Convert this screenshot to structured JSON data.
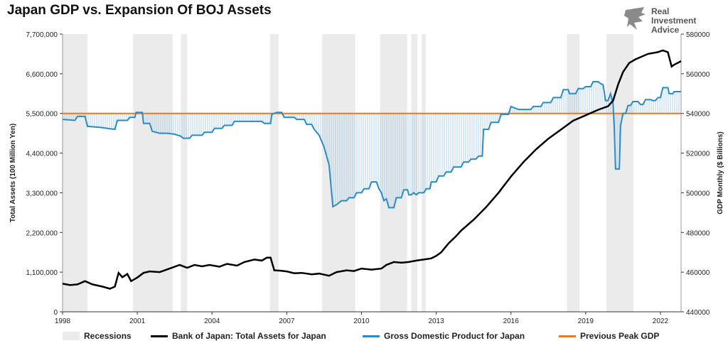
{
  "chart_data": {
    "type": "line",
    "title": "Japan GDP vs. Expansion Of BOJ Assets",
    "brand": {
      "line1": "Real",
      "line2": "Investment",
      "line3": "Advice"
    },
    "x_range": [
      1998.0,
      2022.83
    ],
    "x_ticks": [
      "1998",
      "2001",
      "2004",
      "2007",
      "2010",
      "2013",
      "2016",
      "2019",
      "2022"
    ],
    "left_axis": {
      "label": "Total Assets (100 Million Yen)",
      "range": [
        0,
        7700000
      ],
      "ticks": [
        "0",
        "1,100,000",
        "2,200,000",
        "3,300,000",
        "4,400,000",
        "5,500,000",
        "6,600,000",
        "7,700,000"
      ]
    },
    "right_axis": {
      "label": "GDP Monthly ($ Billions)",
      "range": [
        440000,
        580000
      ],
      "ticks": [
        "440000",
        "460000",
        "480000",
        "500000",
        "520000",
        "540000",
        "560000",
        "580000"
      ]
    },
    "colors": {
      "boj": "#000000",
      "gdp": "#2b8cc4",
      "peak": "#e07b28",
      "recession": "#ebebeb",
      "fill": "#9ec8e2"
    },
    "recessions": [
      [
        1998.0,
        1999.0
      ],
      [
        2000.83,
        2002.42
      ],
      [
        2002.75,
        2003.0
      ],
      [
        2006.33,
        2006.67
      ],
      [
        2008.42,
        2009.75
      ],
      [
        2010.75,
        2011.83
      ],
      [
        2012.0,
        2012.25
      ],
      [
        2012.42,
        2012.58
      ],
      [
        2018.25,
        2018.75
      ],
      [
        2019.83,
        2020.92
      ]
    ],
    "series": [
      {
        "name": "Bank of Japan: Total Assets for Japan",
        "axis": "left",
        "points": [
          [
            1998.0,
            780000
          ],
          [
            1998.3,
            740000
          ],
          [
            1998.6,
            760000
          ],
          [
            1998.9,
            850000
          ],
          [
            1999.2,
            760000
          ],
          [
            1999.6,
            700000
          ],
          [
            1999.9,
            640000
          ],
          [
            2000.1,
            700000
          ],
          [
            2000.25,
            1080000
          ],
          [
            2000.4,
            960000
          ],
          [
            2000.6,
            1050000
          ],
          [
            2000.75,
            850000
          ],
          [
            2001.0,
            950000
          ],
          [
            2001.25,
            1080000
          ],
          [
            2001.5,
            1120000
          ],
          [
            2001.9,
            1100000
          ],
          [
            2002.3,
            1200000
          ],
          [
            2002.7,
            1300000
          ],
          [
            2003.0,
            1220000
          ],
          [
            2003.3,
            1300000
          ],
          [
            2003.6,
            1260000
          ],
          [
            2003.9,
            1300000
          ],
          [
            2004.3,
            1250000
          ],
          [
            2004.6,
            1330000
          ],
          [
            2005.0,
            1280000
          ],
          [
            2005.3,
            1380000
          ],
          [
            2005.7,
            1450000
          ],
          [
            2006.0,
            1420000
          ],
          [
            2006.2,
            1500000
          ],
          [
            2006.35,
            1500000
          ],
          [
            2006.5,
            1150000
          ],
          [
            2006.75,
            1140000
          ],
          [
            2007.0,
            1120000
          ],
          [
            2007.3,
            1070000
          ],
          [
            2007.6,
            1080000
          ],
          [
            2008.0,
            1040000
          ],
          [
            2008.3,
            1060000
          ],
          [
            2008.7,
            1000000
          ],
          [
            2009.0,
            1100000
          ],
          [
            2009.4,
            1150000
          ],
          [
            2009.7,
            1130000
          ],
          [
            2010.0,
            1200000
          ],
          [
            2010.4,
            1170000
          ],
          [
            2010.8,
            1200000
          ],
          [
            2011.0,
            1300000
          ],
          [
            2011.3,
            1380000
          ],
          [
            2011.6,
            1360000
          ],
          [
            2011.9,
            1380000
          ],
          [
            2012.2,
            1420000
          ],
          [
            2012.5,
            1450000
          ],
          [
            2012.8,
            1480000
          ],
          [
            2013.0,
            1550000
          ],
          [
            2013.2,
            1650000
          ],
          [
            2013.5,
            1900000
          ],
          [
            2013.8,
            2100000
          ],
          [
            2014.0,
            2250000
          ],
          [
            2014.5,
            2550000
          ],
          [
            2015.0,
            2900000
          ],
          [
            2015.5,
            3300000
          ],
          [
            2016.0,
            3750000
          ],
          [
            2016.5,
            4150000
          ],
          [
            2017.0,
            4500000
          ],
          [
            2017.5,
            4800000
          ],
          [
            2018.0,
            5050000
          ],
          [
            2018.5,
            5300000
          ],
          [
            2019.0,
            5450000
          ],
          [
            2019.5,
            5600000
          ],
          [
            2019.9,
            5700000
          ],
          [
            2020.1,
            5850000
          ],
          [
            2020.3,
            6300000
          ],
          [
            2020.5,
            6650000
          ],
          [
            2020.75,
            6900000
          ],
          [
            2021.0,
            7000000
          ],
          [
            2021.5,
            7150000
          ],
          [
            2021.9,
            7200000
          ],
          [
            2022.1,
            7250000
          ],
          [
            2022.3,
            7200000
          ],
          [
            2022.45,
            6800000
          ],
          [
            2022.55,
            6850000
          ],
          [
            2022.83,
            6950000
          ]
        ]
      },
      {
        "name": "Gross Domestic Product for Japan",
        "axis": "right",
        "points": [
          [
            1998.0,
            537000
          ],
          [
            1998.5,
            536500
          ],
          [
            1998.6,
            538500
          ],
          [
            1998.9,
            538500
          ],
          [
            1999.0,
            533500
          ],
          [
            1999.5,
            533000
          ],
          [
            1999.8,
            532500
          ],
          [
            2000.1,
            532000
          ],
          [
            2000.2,
            536500
          ],
          [
            2000.6,
            536500
          ],
          [
            2000.7,
            538000
          ],
          [
            2000.9,
            538000
          ],
          [
            2000.95,
            540500
          ],
          [
            2001.2,
            540500
          ],
          [
            2001.25,
            535000
          ],
          [
            2001.5,
            535000
          ],
          [
            2001.6,
            531000
          ],
          [
            2001.9,
            530000
          ],
          [
            2002.2,
            530000
          ],
          [
            2002.5,
            529500
          ],
          [
            2002.75,
            528500
          ],
          [
            2002.85,
            527500
          ],
          [
            2003.1,
            527500
          ],
          [
            2003.2,
            529000
          ],
          [
            2003.6,
            529000
          ],
          [
            2003.7,
            530500
          ],
          [
            2004.0,
            530500
          ],
          [
            2004.1,
            532500
          ],
          [
            2004.4,
            532500
          ],
          [
            2004.5,
            534000
          ],
          [
            2004.8,
            534000
          ],
          [
            2004.9,
            536000
          ],
          [
            2006.0,
            536000
          ],
          [
            2006.1,
            535000
          ],
          [
            2006.35,
            535000
          ],
          [
            2006.4,
            539500
          ],
          [
            2006.6,
            540500
          ],
          [
            2006.8,
            540500
          ],
          [
            2006.9,
            538000
          ],
          [
            2007.3,
            538000
          ],
          [
            2007.4,
            537000
          ],
          [
            2007.7,
            537000
          ],
          [
            2007.8,
            534500
          ],
          [
            2008.0,
            534500
          ],
          [
            2008.1,
            532000
          ],
          [
            2008.3,
            529000
          ],
          [
            2008.5,
            523000
          ],
          [
            2008.7,
            514000
          ],
          [
            2008.85,
            493000
          ],
          [
            2009.0,
            494000
          ],
          [
            2009.2,
            496000
          ],
          [
            2009.4,
            496000
          ],
          [
            2009.5,
            497500
          ],
          [
            2009.7,
            497500
          ],
          [
            2009.8,
            500000
          ],
          [
            2010.0,
            500000
          ],
          [
            2010.1,
            502000
          ],
          [
            2010.3,
            502000
          ],
          [
            2010.4,
            505500
          ],
          [
            2010.6,
            505500
          ],
          [
            2010.7,
            502000
          ],
          [
            2010.8,
            500000
          ],
          [
            2010.9,
            496000
          ],
          [
            2011.0,
            497000
          ],
          [
            2011.1,
            492500
          ],
          [
            2011.3,
            492500
          ],
          [
            2011.4,
            497500
          ],
          [
            2011.6,
            497500
          ],
          [
            2011.7,
            501500
          ],
          [
            2011.85,
            501500
          ],
          [
            2011.9,
            499000
          ],
          [
            2012.0,
            499000
          ],
          [
            2012.1,
            500000
          ],
          [
            2012.2,
            499000
          ],
          [
            2012.3,
            500000
          ],
          [
            2012.5,
            500000
          ],
          [
            2012.6,
            502000
          ],
          [
            2012.75,
            502000
          ],
          [
            2012.8,
            505500
          ],
          [
            2013.0,
            505500
          ],
          [
            2013.1,
            508500
          ],
          [
            2013.3,
            508500
          ],
          [
            2013.4,
            510500
          ],
          [
            2013.6,
            510500
          ],
          [
            2013.7,
            513000
          ],
          [
            2014.0,
            513000
          ],
          [
            2014.1,
            515500
          ],
          [
            2014.3,
            515500
          ],
          [
            2014.4,
            517000
          ],
          [
            2014.6,
            517000
          ],
          [
            2014.7,
            518500
          ],
          [
            2014.85,
            518500
          ],
          [
            2014.9,
            532000
          ],
          [
            2015.1,
            532000
          ],
          [
            2015.2,
            535500
          ],
          [
            2015.5,
            535500
          ],
          [
            2015.6,
            539500
          ],
          [
            2015.9,
            539500
          ],
          [
            2016.0,
            543500
          ],
          [
            2016.3,
            542000
          ],
          [
            2016.8,
            542000
          ],
          [
            2016.9,
            543500
          ],
          [
            2017.2,
            543500
          ],
          [
            2017.3,
            545500
          ],
          [
            2017.6,
            545500
          ],
          [
            2017.7,
            548000
          ],
          [
            2018.0,
            548000
          ],
          [
            2018.1,
            552000
          ],
          [
            2018.3,
            552000
          ],
          [
            2018.35,
            550000
          ],
          [
            2018.6,
            550000
          ],
          [
            2018.7,
            552500
          ],
          [
            2018.9,
            552500
          ],
          [
            2019.0,
            553500
          ],
          [
            2019.2,
            553500
          ],
          [
            2019.3,
            556000
          ],
          [
            2019.5,
            556000
          ],
          [
            2019.6,
            555000
          ],
          [
            2019.7,
            554500
          ],
          [
            2019.8,
            546500
          ],
          [
            2019.9,
            546500
          ],
          [
            2020.0,
            550000
          ],
          [
            2020.1,
            545000
          ],
          [
            2020.15,
            532000
          ],
          [
            2020.2,
            512000
          ],
          [
            2020.35,
            512000
          ],
          [
            2020.4,
            534000
          ],
          [
            2020.5,
            540000
          ],
          [
            2020.6,
            540000
          ],
          [
            2020.7,
            544000
          ],
          [
            2020.8,
            544000
          ],
          [
            2020.9,
            546000
          ],
          [
            2021.1,
            546000
          ],
          [
            2021.2,
            544500
          ],
          [
            2021.3,
            544500
          ],
          [
            2021.4,
            547000
          ],
          [
            2021.6,
            547000
          ],
          [
            2021.7,
            546500
          ],
          [
            2021.8,
            546500
          ],
          [
            2021.9,
            548000
          ],
          [
            2022.0,
            548000
          ],
          [
            2022.1,
            553000
          ],
          [
            2022.3,
            553000
          ],
          [
            2022.35,
            550000
          ],
          [
            2022.5,
            550000
          ],
          [
            2022.55,
            551000
          ],
          [
            2022.83,
            551000
          ]
        ]
      },
      {
        "name": "Previous Peak GDP",
        "axis": "right",
        "value": 540000
      }
    ],
    "legend": [
      {
        "key": "recession",
        "label": "Recessions"
      },
      {
        "key": "boj",
        "label": "Bank of Japan: Total Assets for Japan"
      },
      {
        "key": "gdp",
        "label": "Gross Domestic Product for Japan"
      },
      {
        "key": "peak",
        "label": "Previous Peak GDP"
      }
    ]
  }
}
